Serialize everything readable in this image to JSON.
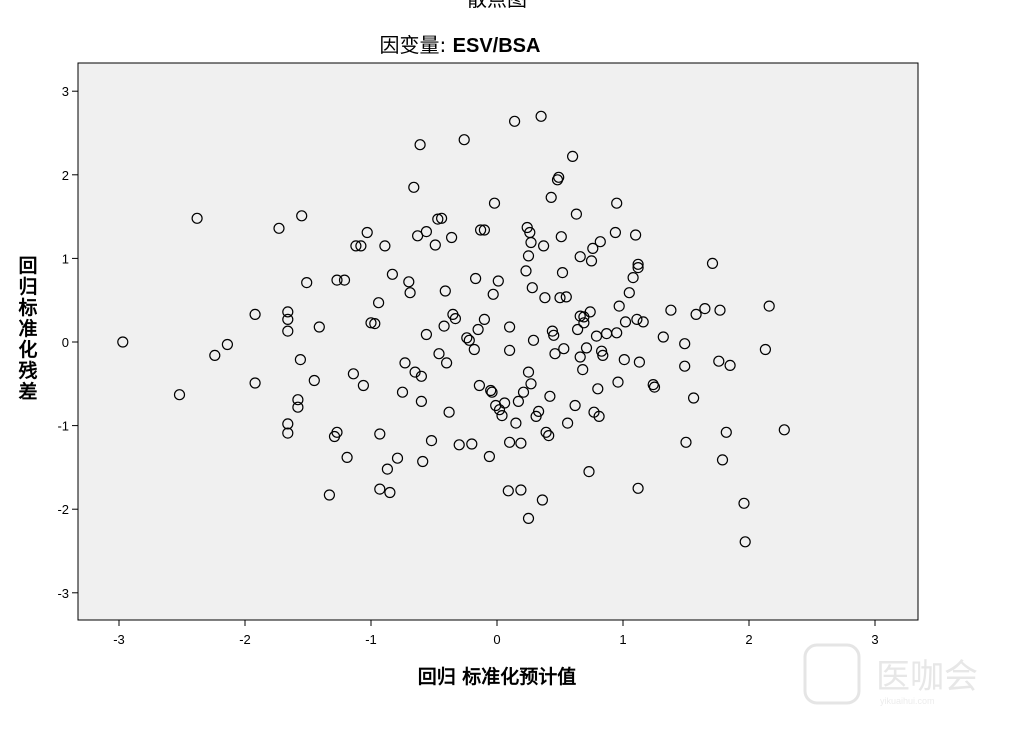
{
  "figure": {
    "top_title": "散点图",
    "subtitle_prefix": "因变量: ",
    "subtitle_var": "ESV/BSA"
  },
  "watermark": {
    "text": "医咖会",
    "sub": "yikuaihui.com"
  },
  "colors": {
    "plot_background": "#f0f0f0",
    "frame": "#000000",
    "marker": "#000000"
  },
  "chart_data": {
    "type": "scatter",
    "title": "散点图",
    "subtitle": "因变量: ESV/BSA",
    "xlabel": "回归 标准化预计值",
    "ylabel": "回归标准化残差",
    "xlim": [
      -3.3,
      3.3
    ],
    "ylim": [
      -3.3,
      3.3
    ],
    "xticks": [
      -3,
      -2,
      -1,
      0,
      1,
      2,
      3
    ],
    "yticks": [
      -3,
      -2,
      -1,
      0,
      1,
      2,
      3
    ],
    "grid": false,
    "marker": "open-circle",
    "points": [
      [
        -2.97,
        0.0
      ],
      [
        -2.52,
        -0.63
      ],
      [
        -2.38,
        1.48
      ],
      [
        -2.24,
        -0.16
      ],
      [
        -2.14,
        -0.03
      ],
      [
        -1.92,
        0.33
      ],
      [
        -1.92,
        -0.49
      ],
      [
        -1.73,
        1.36
      ],
      [
        -1.66,
        0.36
      ],
      [
        -1.66,
        0.27
      ],
      [
        -1.66,
        0.13
      ],
      [
        -1.66,
        -0.98
      ],
      [
        -1.66,
        -1.09
      ],
      [
        -1.58,
        -0.69
      ],
      [
        -1.58,
        -0.78
      ],
      [
        -1.56,
        -0.21
      ],
      [
        -1.55,
        1.51
      ],
      [
        -1.51,
        0.71
      ],
      [
        -1.45,
        -0.46
      ],
      [
        -1.41,
        0.18
      ],
      [
        -1.33,
        -1.83
      ],
      [
        -1.29,
        -1.13
      ],
      [
        -1.27,
        -1.08
      ],
      [
        -1.27,
        0.74
      ],
      [
        -1.21,
        0.74
      ],
      [
        -1.19,
        -1.38
      ],
      [
        -1.14,
        -0.38
      ],
      [
        -1.12,
        1.15
      ],
      [
        -1.08,
        1.15
      ],
      [
        -1.06,
        -0.52
      ],
      [
        -1.03,
        1.31
      ],
      [
        -1.0,
        0.23
      ],
      [
        -0.97,
        0.22
      ],
      [
        -0.94,
        0.47
      ],
      [
        -0.93,
        -1.76
      ],
      [
        -0.93,
        -1.1
      ],
      [
        -0.89,
        1.15
      ],
      [
        -0.87,
        -1.52
      ],
      [
        -0.85,
        -1.8
      ],
      [
        -0.83,
        0.81
      ],
      [
        -0.79,
        -1.39
      ],
      [
        -0.75,
        -0.6
      ],
      [
        -0.73,
        -0.25
      ],
      [
        -0.7,
        0.72
      ],
      [
        -0.69,
        0.59
      ],
      [
        -0.66,
        1.85
      ],
      [
        -0.65,
        -0.36
      ],
      [
        -0.63,
        1.27
      ],
      [
        -0.61,
        2.36
      ],
      [
        -0.6,
        -0.41
      ],
      [
        -0.6,
        -0.71
      ],
      [
        -0.59,
        -1.43
      ],
      [
        -0.56,
        1.32
      ],
      [
        -0.56,
        0.09
      ],
      [
        -0.52,
        -1.18
      ],
      [
        -0.49,
        1.16
      ],
      [
        -0.47,
        1.47
      ],
      [
        -0.46,
        -0.14
      ],
      [
        -0.44,
        1.48
      ],
      [
        -0.42,
        0.19
      ],
      [
        -0.41,
        0.61
      ],
      [
        -0.4,
        -0.25
      ],
      [
        -0.38,
        -0.84
      ],
      [
        -0.36,
        1.25
      ],
      [
        -0.35,
        0.33
      ],
      [
        -0.33,
        0.28
      ],
      [
        -0.3,
        -1.23
      ],
      [
        -0.26,
        2.42
      ],
      [
        -0.24,
        0.05
      ],
      [
        -0.22,
        0.02
      ],
      [
        -0.2,
        -1.22
      ],
      [
        -0.18,
        -0.09
      ],
      [
        -0.17,
        0.76
      ],
      [
        -0.15,
        0.15
      ],
      [
        -0.14,
        -0.52
      ],
      [
        -0.13,
        1.34
      ],
      [
        -0.1,
        1.34
      ],
      [
        -0.1,
        0.27
      ],
      [
        -0.06,
        -1.37
      ],
      [
        -0.05,
        -0.58
      ],
      [
        -0.04,
        -0.6
      ],
      [
        -0.03,
        0.57
      ],
      [
        -0.02,
        1.66
      ],
      [
        -0.01,
        -0.76
      ],
      [
        0.01,
        0.73
      ],
      [
        0.02,
        -0.81
      ],
      [
        0.04,
        -0.88
      ],
      [
        0.06,
        -0.73
      ],
      [
        0.09,
        -1.78
      ],
      [
        0.1,
        -0.1
      ],
      [
        0.1,
        0.18
      ],
      [
        0.1,
        -1.2
      ],
      [
        0.14,
        2.64
      ],
      [
        0.15,
        -0.97
      ],
      [
        0.17,
        -0.71
      ],
      [
        0.19,
        -1.77
      ],
      [
        0.19,
        -1.21
      ],
      [
        0.21,
        -0.6
      ],
      [
        0.23,
        0.85
      ],
      [
        0.24,
        1.37
      ],
      [
        0.25,
        -2.11
      ],
      [
        0.25,
        1.03
      ],
      [
        0.25,
        -0.36
      ],
      [
        0.26,
        1.31
      ],
      [
        0.27,
        1.19
      ],
      [
        0.27,
        -0.5
      ],
      [
        0.28,
        0.65
      ],
      [
        0.29,
        0.02
      ],
      [
        0.31,
        -0.89
      ],
      [
        0.33,
        -0.83
      ],
      [
        0.35,
        2.7
      ],
      [
        0.36,
        -1.89
      ],
      [
        0.37,
        1.15
      ],
      [
        0.38,
        0.53
      ],
      [
        0.39,
        -1.08
      ],
      [
        0.41,
        -1.12
      ],
      [
        0.42,
        -0.65
      ],
      [
        0.43,
        1.73
      ],
      [
        0.44,
        0.13
      ],
      [
        0.45,
        0.08
      ],
      [
        0.46,
        -0.14
      ],
      [
        0.48,
        1.94
      ],
      [
        0.49,
        1.97
      ],
      [
        0.5,
        0.53
      ],
      [
        0.51,
        1.26
      ],
      [
        0.52,
        0.83
      ],
      [
        0.53,
        -0.08
      ],
      [
        0.55,
        0.54
      ],
      [
        0.56,
        -0.97
      ],
      [
        0.6,
        2.22
      ],
      [
        0.62,
        -0.76
      ],
      [
        0.63,
        1.53
      ],
      [
        0.64,
        0.15
      ],
      [
        0.66,
        0.31
      ],
      [
        0.66,
        -0.18
      ],
      [
        0.66,
        1.02
      ],
      [
        0.68,
        -0.33
      ],
      [
        0.69,
        0.23
      ],
      [
        0.69,
        0.3
      ],
      [
        0.71,
        -0.07
      ],
      [
        0.73,
        -1.55
      ],
      [
        0.74,
        0.36
      ],
      [
        0.75,
        0.97
      ],
      [
        0.76,
        1.12
      ],
      [
        0.77,
        -0.84
      ],
      [
        0.79,
        0.07
      ],
      [
        0.8,
        -0.56
      ],
      [
        0.81,
        -0.89
      ],
      [
        0.82,
        1.2
      ],
      [
        0.83,
        -0.11
      ],
      [
        0.84,
        -0.16
      ],
      [
        0.87,
        0.1
      ],
      [
        0.94,
        1.31
      ],
      [
        0.95,
        0.11
      ],
      [
        0.95,
        1.66
      ],
      [
        0.96,
        -0.48
      ],
      [
        0.97,
        0.43
      ],
      [
        1.01,
        -0.21
      ],
      [
        1.02,
        0.24
      ],
      [
        1.05,
        0.59
      ],
      [
        1.08,
        0.77
      ],
      [
        1.1,
        1.28
      ],
      [
        1.11,
        0.27
      ],
      [
        1.12,
        0.93
      ],
      [
        1.12,
        0.89
      ],
      [
        1.13,
        -0.24
      ],
      [
        1.16,
        0.24
      ],
      [
        1.24,
        -0.51
      ],
      [
        1.25,
        -0.54
      ],
      [
        1.32,
        0.06
      ],
      [
        1.38,
        0.38
      ],
      [
        1.49,
        -0.02
      ],
      [
        1.49,
        -0.29
      ],
      [
        1.5,
        -1.2
      ],
      [
        1.56,
        -0.67
      ],
      [
        1.58,
        0.33
      ],
      [
        1.65,
        0.4
      ],
      [
        1.71,
        0.94
      ],
      [
        1.76,
        -0.23
      ],
      [
        1.77,
        0.38
      ],
      [
        1.79,
        -1.41
      ],
      [
        1.82,
        -1.08
      ],
      [
        1.85,
        -0.28
      ],
      [
        1.96,
        -1.93
      ],
      [
        1.97,
        -2.39
      ],
      [
        2.13,
        -0.09
      ],
      [
        2.16,
        0.43
      ],
      [
        2.28,
        -1.05
      ],
      [
        1.12,
        -1.75
      ]
    ]
  }
}
